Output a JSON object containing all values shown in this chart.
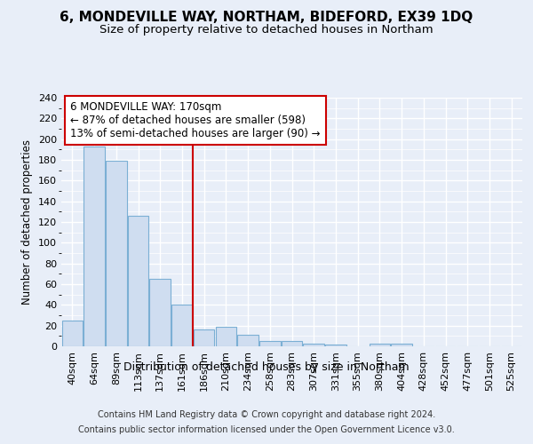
{
  "title1": "6, MONDEVILLE WAY, NORTHAM, BIDEFORD, EX39 1DQ",
  "title2": "Size of property relative to detached houses in Northam",
  "xlabel": "Distribution of detached houses by size in Northam",
  "ylabel": "Number of detached properties",
  "categories": [
    "40sqm",
    "64sqm",
    "89sqm",
    "113sqm",
    "137sqm",
    "161sqm",
    "186sqm",
    "210sqm",
    "234sqm",
    "258sqm",
    "283sqm",
    "307sqm",
    "331sqm",
    "355sqm",
    "380sqm",
    "404sqm",
    "428sqm",
    "452sqm",
    "477sqm",
    "501sqm",
    "525sqm"
  ],
  "values": [
    25,
    193,
    179,
    126,
    65,
    40,
    16,
    19,
    11,
    5,
    5,
    3,
    2,
    0,
    3,
    3,
    0,
    0,
    0,
    0,
    0
  ],
  "bar_color": "#cfddf0",
  "bar_edge_color": "#7bafd4",
  "red_line_index": 6,
  "annotation_line1": "6 MONDEVILLE WAY: 170sqm",
  "annotation_line2": "← 87% of detached houses are smaller (598)",
  "annotation_line3": "13% of semi-detached houses are larger (90) →",
  "annotation_box_color": "#ffffff",
  "annotation_box_edge": "#cc0000",
  "footer1": "Contains HM Land Registry data © Crown copyright and database right 2024.",
  "footer2": "Contains public sector information licensed under the Open Government Licence v3.0.",
  "background_color": "#e8eef8",
  "ylim": [
    0,
    240
  ],
  "yticks": [
    0,
    20,
    40,
    60,
    80,
    100,
    120,
    140,
    160,
    180,
    200,
    220,
    240
  ],
  "grid_color": "#ffffff",
  "title1_fontsize": 11,
  "title2_fontsize": 9.5,
  "xlabel_fontsize": 9,
  "ylabel_fontsize": 8.5,
  "tick_fontsize": 8,
  "annotation_fontsize": 8.5,
  "footer_fontsize": 7
}
